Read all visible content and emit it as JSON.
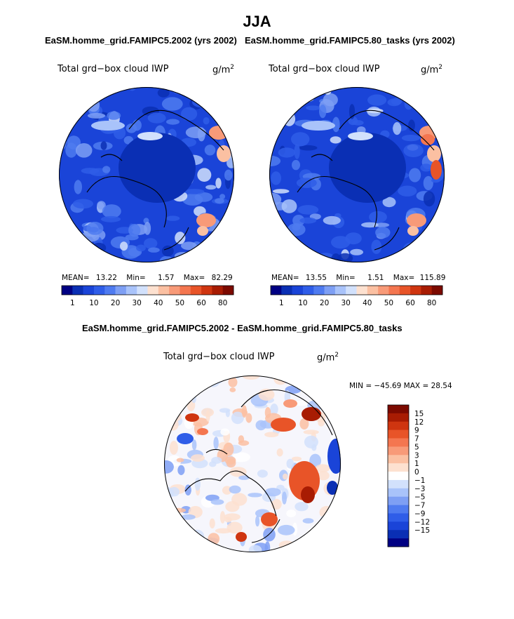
{
  "page": {
    "title": "JJA"
  },
  "colors": {
    "blues": [
      "#000083",
      "#0a2fb4",
      "#1a44d8",
      "#2f5de8",
      "#4f7bf0",
      "#7e9ff4",
      "#a9c3fa",
      "#d2e1fc"
    ],
    "reds": [
      "#fde1d0",
      "#fbc0a2",
      "#f89a78",
      "#f47650",
      "#e85428",
      "#cf3510",
      "#a81c03",
      "#7c0a00"
    ],
    "neutral": "#ffffff"
  },
  "chart_data": [
    {
      "type": "heatmap",
      "subtitle": "EaSM.homme_grid.FAMIPC5.2002 (yrs 2002)",
      "variable_label": "Total grd−box cloud IWP",
      "units_base": "g/m",
      "units_exp": "2",
      "stats": {
        "mean_label": "MEAN=",
        "mean": "13.22",
        "min_label": "Min=",
        "min": "1.57",
        "max_label": "Max=",
        "max": "82.29"
      },
      "colorbar_levels": [
        "1",
        "10",
        "20",
        "30",
        "40",
        "50",
        "60",
        "80"
      ]
    },
    {
      "type": "heatmap",
      "subtitle": "EaSM.homme_grid.FAMIPC5.80_tasks (yrs 2002)",
      "variable_label": "Total grd−box cloud IWP",
      "units_base": "g/m",
      "units_exp": "2",
      "stats": {
        "mean_label": "MEAN=",
        "mean": "13.55",
        "min_label": "Min=",
        "min": "1.51",
        "max_label": "Max=",
        "max": "115.89"
      },
      "colorbar_levels": [
        "1",
        "10",
        "20",
        "30",
        "40",
        "50",
        "60",
        "80"
      ]
    },
    {
      "type": "heatmap",
      "subtitle": "EaSM.homme_grid.FAMIPC5.2002 - EaSM.homme_grid.FAMIPC5.80_tasks",
      "variable_label": "Total grd−box cloud IWP",
      "units_base": "g/m",
      "units_exp": "2",
      "stats_text": "MIN = −45.69 MAX =  28.54",
      "colorbar_levels": [
        "15",
        "12",
        "9",
        "7",
        "5",
        "3",
        "1",
        "0",
        "−1",
        "−3",
        "−5",
        "−7",
        "−9",
        "−12",
        "−15"
      ]
    }
  ]
}
